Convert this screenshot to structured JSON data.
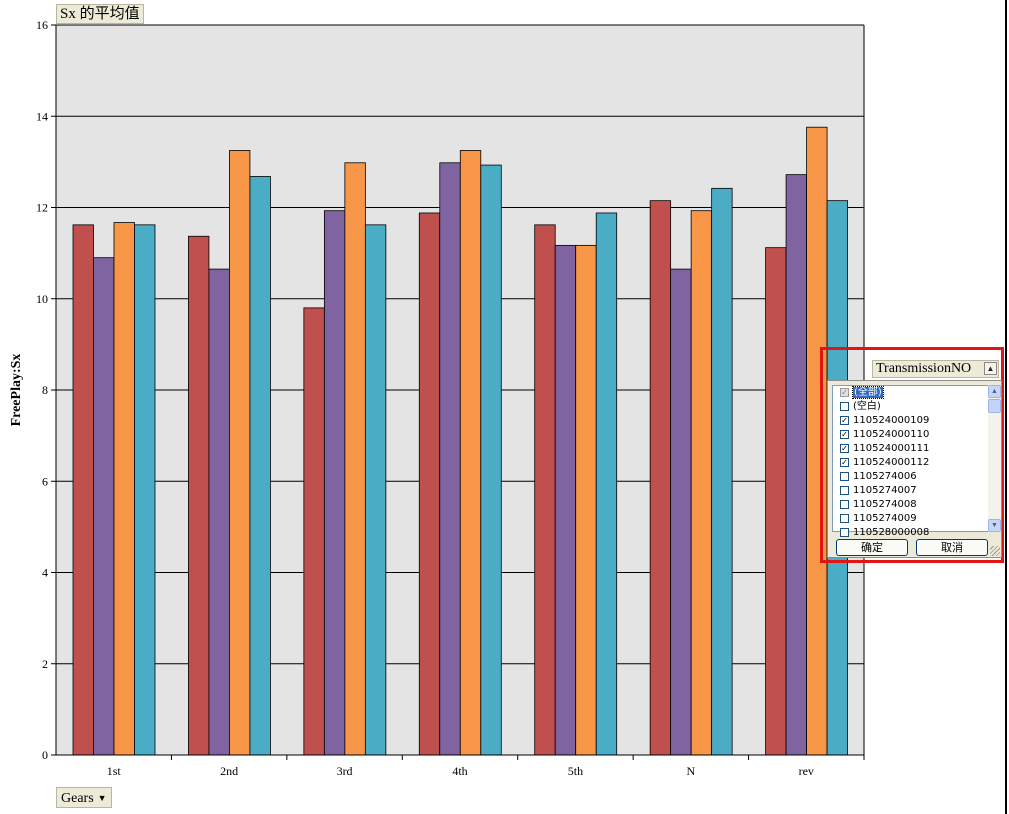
{
  "title_button": "Sx 的平均值",
  "gears_button": "Gears",
  "filter": {
    "field_label": "TransmissionNO",
    "items": [
      {
        "label": "(全部)",
        "checked": "partial",
        "selected": true
      },
      {
        "label": "(空白)",
        "checked": false
      },
      {
        "label": "110524000109",
        "checked": true
      },
      {
        "label": "110524000110",
        "checked": true
      },
      {
        "label": "110524000111",
        "checked": true
      },
      {
        "label": "110524000112",
        "checked": true
      },
      {
        "label": "1105274006",
        "checked": false
      },
      {
        "label": "1105274007",
        "checked": false
      },
      {
        "label": "1105274008",
        "checked": false
      },
      {
        "label": "1105274009",
        "checked": false
      },
      {
        "label": "110528000008",
        "checked": false
      }
    ],
    "ok_label": "确定",
    "cancel_label": "取消"
  },
  "chart_data": {
    "type": "bar",
    "ylabel": "FreePlay:Sx",
    "ylim": [
      0,
      16
    ],
    "yticks": [
      0,
      2,
      4,
      6,
      8,
      10,
      12,
      14,
      16
    ],
    "grid": true,
    "categories": [
      "1st",
      "2nd",
      "3rd",
      "4th",
      "5th",
      "N",
      "rev"
    ],
    "series": [
      {
        "color": "#c0504d",
        "values": [
          11.62,
          11.37,
          9.8,
          11.88,
          11.62,
          12.15,
          11.12
        ]
      },
      {
        "color": "#8064a2",
        "values": [
          10.9,
          10.65,
          11.93,
          12.98,
          11.17,
          10.65,
          12.72
        ]
      },
      {
        "color": "#f79646",
        "values": [
          11.67,
          13.25,
          12.98,
          13.25,
          11.17,
          11.93,
          13.76
        ]
      },
      {
        "color": "#4bacc6",
        "values": [
          11.62,
          12.68,
          11.62,
          12.93,
          11.88,
          12.42,
          12.15
        ]
      }
    ]
  },
  "colors": {
    "plot_background": "#e4e4e4",
    "highlight_frame": "#e21515"
  }
}
